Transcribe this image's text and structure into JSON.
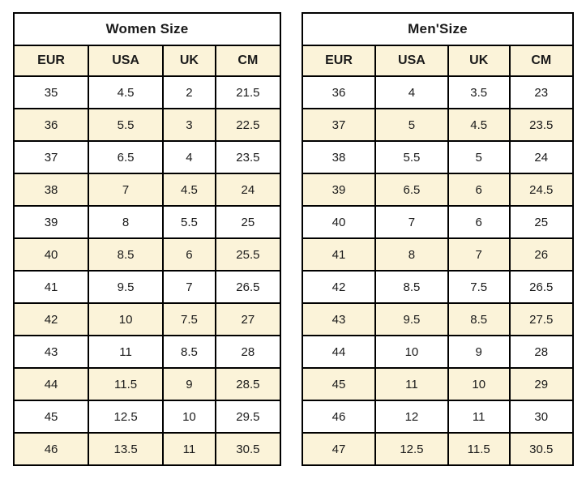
{
  "colors": {
    "row_highlight": "#FBF3D9",
    "border": "#000000",
    "text": "#1A1A1A",
    "background": "#FFFFFF"
  },
  "tables": [
    {
      "title": "Women Size",
      "columns": [
        "EUR",
        "USA",
        "UK",
        "CM"
      ],
      "rows": [
        [
          "35",
          "4.5",
          "2",
          "21.5"
        ],
        [
          "36",
          "5.5",
          "3",
          "22.5"
        ],
        [
          "37",
          "6.5",
          "4",
          "23.5"
        ],
        [
          "38",
          "7",
          "4.5",
          "24"
        ],
        [
          "39",
          "8",
          "5.5",
          "25"
        ],
        [
          "40",
          "8.5",
          "6",
          "25.5"
        ],
        [
          "41",
          "9.5",
          "7",
          "26.5"
        ],
        [
          "42",
          "10",
          "7.5",
          "27"
        ],
        [
          "43",
          "11",
          "8.5",
          "28"
        ],
        [
          "44",
          "11.5",
          "9",
          "28.5"
        ],
        [
          "45",
          "12.5",
          "10",
          "29.5"
        ],
        [
          "46",
          "13.5",
          "11",
          "30.5"
        ]
      ]
    },
    {
      "title": "Men'Size",
      "columns": [
        "EUR",
        "USA",
        "UK",
        "CM"
      ],
      "rows": [
        [
          "36",
          "4",
          "3.5",
          "23"
        ],
        [
          "37",
          "5",
          "4.5",
          "23.5"
        ],
        [
          "38",
          "5.5",
          "5",
          "24"
        ],
        [
          "39",
          "6.5",
          "6",
          "24.5"
        ],
        [
          "40",
          "7",
          "6",
          "25"
        ],
        [
          "41",
          "8",
          "7",
          "26"
        ],
        [
          "42",
          "8.5",
          "7.5",
          "26.5"
        ],
        [
          "43",
          "9.5",
          "8.5",
          "27.5"
        ],
        [
          "44",
          "10",
          "9",
          "28"
        ],
        [
          "45",
          "11",
          "10",
          "29"
        ],
        [
          "46",
          "12",
          "11",
          "30"
        ],
        [
          "47",
          "12.5",
          "11.5",
          "30.5"
        ]
      ]
    }
  ],
  "chart_data": [
    {
      "type": "table",
      "title": "Women Size",
      "columns": [
        "EUR",
        "USA",
        "UK",
        "CM"
      ],
      "rows": [
        [
          35,
          4.5,
          2,
          21.5
        ],
        [
          36,
          5.5,
          3,
          22.5
        ],
        [
          37,
          6.5,
          4,
          23.5
        ],
        [
          38,
          7,
          4.5,
          24
        ],
        [
          39,
          8,
          5.5,
          25
        ],
        [
          40,
          8.5,
          6,
          25.5
        ],
        [
          41,
          9.5,
          7,
          26.5
        ],
        [
          42,
          10,
          7.5,
          27
        ],
        [
          43,
          11,
          8.5,
          28
        ],
        [
          44,
          11.5,
          9,
          28.5
        ],
        [
          45,
          12.5,
          10,
          29.5
        ],
        [
          46,
          13.5,
          11,
          30.5
        ]
      ],
      "layout_hints": {
        "striped_rows": true,
        "stripe_color": "#FBF3D9",
        "border_color": "#000000"
      }
    },
    {
      "type": "table",
      "title": "Men'Size",
      "columns": [
        "EUR",
        "USA",
        "UK",
        "CM"
      ],
      "rows": [
        [
          36,
          4,
          3.5,
          23
        ],
        [
          37,
          5,
          4.5,
          23.5
        ],
        [
          38,
          5.5,
          5,
          24
        ],
        [
          39,
          6.5,
          6,
          24.5
        ],
        [
          40,
          7,
          6,
          25
        ],
        [
          41,
          8,
          7,
          26
        ],
        [
          42,
          8.5,
          7.5,
          26.5
        ],
        [
          43,
          9.5,
          8.5,
          27.5
        ],
        [
          44,
          10,
          9,
          28
        ],
        [
          45,
          11,
          10,
          29
        ],
        [
          46,
          12,
          11,
          30
        ],
        [
          47,
          12.5,
          11.5,
          30.5
        ]
      ],
      "layout_hints": {
        "striped_rows": true,
        "stripe_color": "#FBF3D9",
        "border_color": "#000000"
      }
    }
  ]
}
